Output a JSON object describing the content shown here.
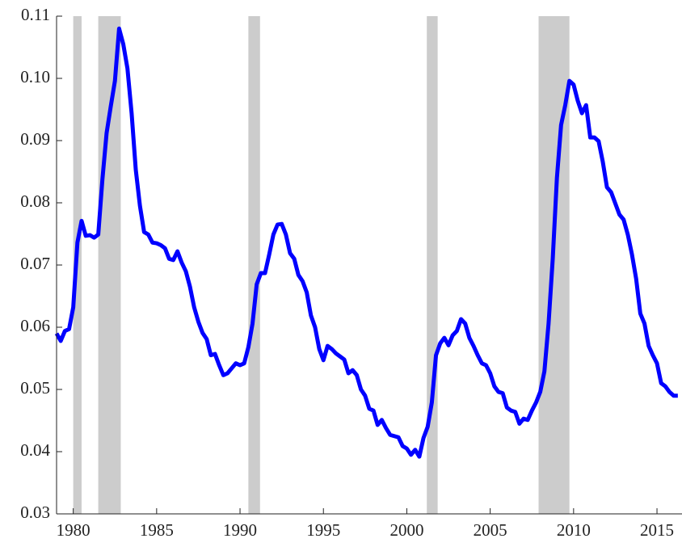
{
  "chart_data": {
    "type": "line",
    "x": [
      1979,
      1979.25,
      1979.5,
      1979.75,
      1980,
      1980.25,
      1980.5,
      1980.75,
      1981,
      1981.25,
      1981.5,
      1981.75,
      1982,
      1982.25,
      1982.5,
      1982.75,
      1983,
      1983.25,
      1983.5,
      1983.75,
      1984,
      1984.25,
      1984.5,
      1984.75,
      1985,
      1985.25,
      1985.5,
      1985.75,
      1986,
      1986.25,
      1986.5,
      1986.75,
      1987,
      1987.25,
      1987.5,
      1987.75,
      1988,
      1988.25,
      1988.5,
      1988.75,
      1989,
      1989.25,
      1989.5,
      1989.75,
      1990,
      1990.25,
      1990.5,
      1990.75,
      1991,
      1991.25,
      1991.5,
      1991.75,
      1992,
      1992.25,
      1992.5,
      1992.75,
      1993,
      1993.25,
      1993.5,
      1993.75,
      1994,
      1994.25,
      1994.5,
      1994.75,
      1995,
      1995.25,
      1995.5,
      1995.75,
      1996,
      1996.25,
      1996.5,
      1996.75,
      1997,
      1997.25,
      1997.5,
      1997.75,
      1998,
      1998.25,
      1998.5,
      1998.75,
      1999,
      1999.25,
      1999.5,
      1999.75,
      2000,
      2000.25,
      2000.5,
      2000.75,
      2001,
      2001.25,
      2001.5,
      2001.75,
      2002,
      2002.25,
      2002.5,
      2002.75,
      2003,
      2003.25,
      2003.5,
      2003.75,
      2004,
      2004.25,
      2004.5,
      2004.75,
      2005,
      2005.25,
      2005.5,
      2005.75,
      2006,
      2006.25,
      2006.5,
      2006.75,
      2007,
      2007.25,
      2007.5,
      2007.75,
      2008,
      2008.25,
      2008.5,
      2008.75,
      2009,
      2009.25,
      2009.5,
      2009.75,
      2010,
      2010.25,
      2010.5,
      2010.75,
      2011,
      2011.25,
      2011.5,
      2011.75,
      2012,
      2012.25,
      2012.5,
      2012.75,
      2013,
      2013.25,
      2013.5,
      2013.75,
      2014,
      2014.25,
      2014.5,
      2014.75,
      2015,
      2015.25,
      2015.5,
      2015.75,
      2016,
      2016.25
    ],
    "values": [
      0.059,
      0.0578,
      0.0594,
      0.0597,
      0.0632,
      0.0736,
      0.0771,
      0.0747,
      0.0748,
      0.0744,
      0.0749,
      0.0838,
      0.0912,
      0.0955,
      0.0996,
      0.108,
      0.1055,
      0.1016,
      0.0944,
      0.0853,
      0.0795,
      0.0753,
      0.0749,
      0.0736,
      0.0735,
      0.0732,
      0.0727,
      0.071,
      0.0708,
      0.0722,
      0.0704,
      0.069,
      0.0665,
      0.0632,
      0.0609,
      0.0591,
      0.0581,
      0.0555,
      0.0557,
      0.0539,
      0.0523,
      0.0526,
      0.0534,
      0.0542,
      0.0539,
      0.0542,
      0.0568,
      0.0606,
      0.0669,
      0.0687,
      0.0687,
      0.0717,
      0.0749,
      0.0765,
      0.0766,
      0.0749,
      0.0719,
      0.071,
      0.0684,
      0.0674,
      0.0656,
      0.0619,
      0.06,
      0.0565,
      0.0547,
      0.057,
      0.0565,
      0.0558,
      0.0553,
      0.0548,
      0.0526,
      0.0531,
      0.0523,
      0.05,
      0.049,
      0.0469,
      0.0466,
      0.0443,
      0.0451,
      0.0438,
      0.0427,
      0.0425,
      0.0423,
      0.0409,
      0.0405,
      0.0395,
      0.0403,
      0.0392,
      0.0422,
      0.044,
      0.0479,
      0.0555,
      0.0574,
      0.0583,
      0.0571,
      0.0587,
      0.0594,
      0.0613,
      0.0606,
      0.0583,
      0.057,
      0.0555,
      0.0542,
      0.0539,
      0.0526,
      0.0505,
      0.0496,
      0.0494,
      0.0471,
      0.0466,
      0.0464,
      0.0445,
      0.0453,
      0.0451,
      0.0466,
      0.0479,
      0.0496,
      0.0529,
      0.0606,
      0.071,
      0.084,
      0.0925,
      0.0957,
      0.0996,
      0.099,
      0.0964,
      0.0944,
      0.0957,
      0.0905,
      0.0905,
      0.0899,
      0.0866,
      0.0825,
      0.0817,
      0.0799,
      0.0781,
      0.0773,
      0.0749,
      0.0717,
      0.0678,
      0.0622,
      0.0606,
      0.057,
      0.0555,
      0.0542,
      0.051,
      0.0505,
      0.0496,
      0.049,
      0.049
    ],
    "color": "#0000ff",
    "shaded_periods": [
      [
        1980.0,
        1980.5
      ],
      [
        1981.5,
        1982.85
      ],
      [
        1990.5,
        1991.2
      ],
      [
        2001.2,
        2001.85
      ],
      [
        2007.9,
        2009.75
      ]
    ],
    "shade_color": "#cccccc",
    "xlim": [
      1979,
      2016.5
    ],
    "ylim": [
      0.03,
      0.11
    ],
    "xticks": [
      1980,
      1985,
      1990,
      1995,
      2000,
      2005,
      2010,
      2015
    ],
    "yticks": [
      0.03,
      0.04,
      0.05,
      0.06,
      0.07,
      0.08,
      0.09,
      {
        "value": 0.1,
        "label": "0.10"
      },
      0.11
    ]
  }
}
